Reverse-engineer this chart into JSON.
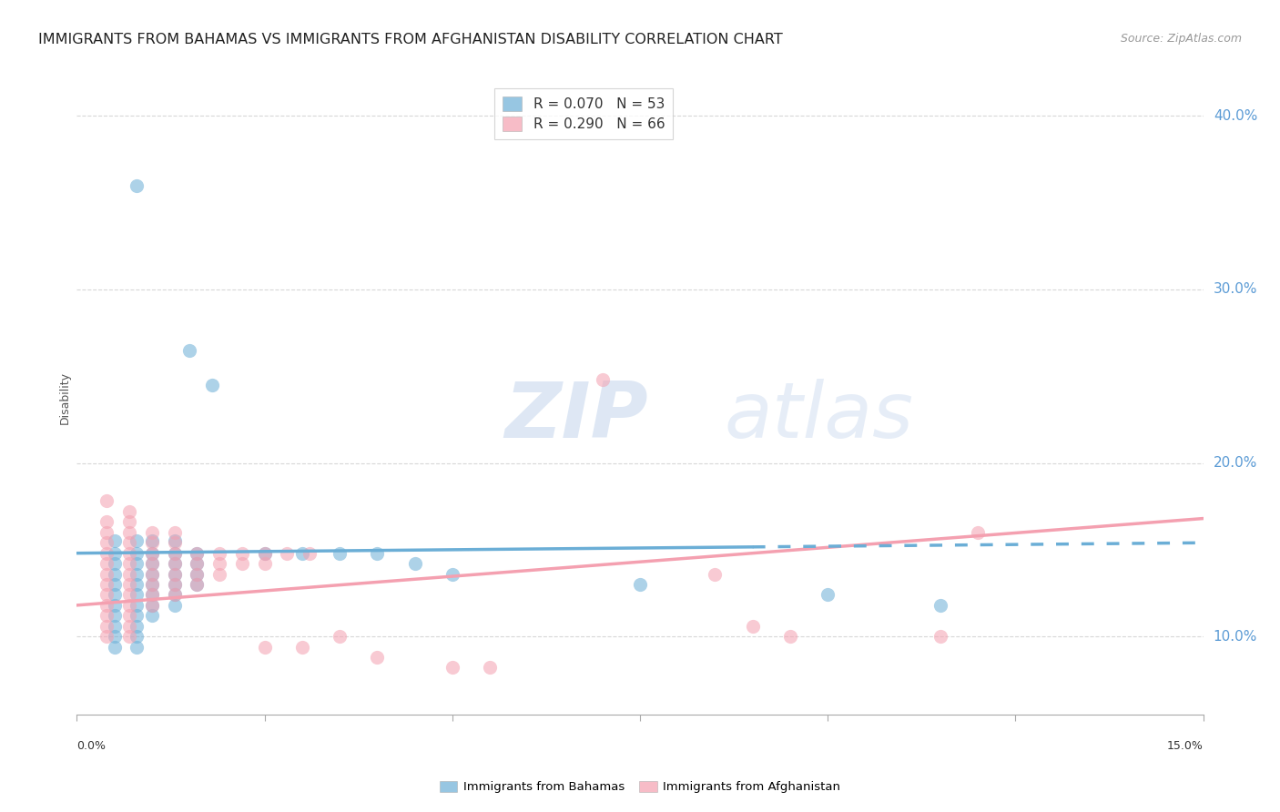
{
  "title": "IMMIGRANTS FROM BAHAMAS VS IMMIGRANTS FROM AFGHANISTAN DISABILITY CORRELATION CHART",
  "source": "Source: ZipAtlas.com",
  "ylabel": "Disability",
  "right_yticks": [
    10.0,
    20.0,
    30.0,
    40.0
  ],
  "xlim": [
    0.0,
    0.15
  ],
  "ylim": [
    0.055,
    0.42
  ],
  "legend_entry_bahamas": "R = 0.070   N = 53",
  "legend_entry_afghanistan": "R = 0.290   N = 66",
  "bahamas_color": "#6baed6",
  "afghanistan_color": "#f4a0b0",
  "bahamas_scatter": [
    [
      0.008,
      0.36
    ],
    [
      0.015,
      0.265
    ],
    [
      0.018,
      0.245
    ],
    [
      0.005,
      0.155
    ],
    [
      0.008,
      0.155
    ],
    [
      0.01,
      0.155
    ],
    [
      0.013,
      0.155
    ],
    [
      0.005,
      0.148
    ],
    [
      0.008,
      0.148
    ],
    [
      0.01,
      0.148
    ],
    [
      0.013,
      0.148
    ],
    [
      0.016,
      0.148
    ],
    [
      0.005,
      0.142
    ],
    [
      0.008,
      0.142
    ],
    [
      0.01,
      0.142
    ],
    [
      0.013,
      0.142
    ],
    [
      0.016,
      0.142
    ],
    [
      0.005,
      0.136
    ],
    [
      0.008,
      0.136
    ],
    [
      0.01,
      0.136
    ],
    [
      0.013,
      0.136
    ],
    [
      0.016,
      0.136
    ],
    [
      0.005,
      0.13
    ],
    [
      0.008,
      0.13
    ],
    [
      0.01,
      0.13
    ],
    [
      0.013,
      0.13
    ],
    [
      0.016,
      0.13
    ],
    [
      0.005,
      0.124
    ],
    [
      0.008,
      0.124
    ],
    [
      0.01,
      0.124
    ],
    [
      0.013,
      0.124
    ],
    [
      0.005,
      0.118
    ],
    [
      0.008,
      0.118
    ],
    [
      0.01,
      0.118
    ],
    [
      0.013,
      0.118
    ],
    [
      0.005,
      0.112
    ],
    [
      0.008,
      0.112
    ],
    [
      0.01,
      0.112
    ],
    [
      0.005,
      0.106
    ],
    [
      0.008,
      0.106
    ],
    [
      0.005,
      0.1
    ],
    [
      0.008,
      0.1
    ],
    [
      0.005,
      0.094
    ],
    [
      0.008,
      0.094
    ],
    [
      0.025,
      0.148
    ],
    [
      0.03,
      0.148
    ],
    [
      0.035,
      0.148
    ],
    [
      0.04,
      0.148
    ],
    [
      0.045,
      0.142
    ],
    [
      0.05,
      0.136
    ],
    [
      0.075,
      0.13
    ],
    [
      0.1,
      0.124
    ],
    [
      0.115,
      0.118
    ]
  ],
  "afghanistan_scatter": [
    [
      0.004,
      0.178
    ],
    [
      0.007,
      0.172
    ],
    [
      0.004,
      0.166
    ],
    [
      0.007,
      0.166
    ],
    [
      0.004,
      0.16
    ],
    [
      0.007,
      0.16
    ],
    [
      0.01,
      0.16
    ],
    [
      0.013,
      0.16
    ],
    [
      0.004,
      0.154
    ],
    [
      0.007,
      0.154
    ],
    [
      0.01,
      0.154
    ],
    [
      0.013,
      0.154
    ],
    [
      0.004,
      0.148
    ],
    [
      0.007,
      0.148
    ],
    [
      0.01,
      0.148
    ],
    [
      0.013,
      0.148
    ],
    [
      0.016,
      0.148
    ],
    [
      0.019,
      0.148
    ],
    [
      0.022,
      0.148
    ],
    [
      0.025,
      0.148
    ],
    [
      0.028,
      0.148
    ],
    [
      0.031,
      0.148
    ],
    [
      0.004,
      0.142
    ],
    [
      0.007,
      0.142
    ],
    [
      0.01,
      0.142
    ],
    [
      0.013,
      0.142
    ],
    [
      0.016,
      0.142
    ],
    [
      0.019,
      0.142
    ],
    [
      0.022,
      0.142
    ],
    [
      0.025,
      0.142
    ],
    [
      0.004,
      0.136
    ],
    [
      0.007,
      0.136
    ],
    [
      0.01,
      0.136
    ],
    [
      0.013,
      0.136
    ],
    [
      0.016,
      0.136
    ],
    [
      0.019,
      0.136
    ],
    [
      0.004,
      0.13
    ],
    [
      0.007,
      0.13
    ],
    [
      0.01,
      0.13
    ],
    [
      0.013,
      0.13
    ],
    [
      0.016,
      0.13
    ],
    [
      0.004,
      0.124
    ],
    [
      0.007,
      0.124
    ],
    [
      0.01,
      0.124
    ],
    [
      0.013,
      0.124
    ],
    [
      0.004,
      0.118
    ],
    [
      0.007,
      0.118
    ],
    [
      0.01,
      0.118
    ],
    [
      0.004,
      0.112
    ],
    [
      0.007,
      0.112
    ],
    [
      0.004,
      0.106
    ],
    [
      0.007,
      0.106
    ],
    [
      0.004,
      0.1
    ],
    [
      0.007,
      0.1
    ],
    [
      0.025,
      0.094
    ],
    [
      0.03,
      0.094
    ],
    [
      0.035,
      0.1
    ],
    [
      0.04,
      0.088
    ],
    [
      0.05,
      0.082
    ],
    [
      0.055,
      0.082
    ],
    [
      0.07,
      0.248
    ],
    [
      0.085,
      0.136
    ],
    [
      0.09,
      0.106
    ],
    [
      0.095,
      0.1
    ],
    [
      0.115,
      0.1
    ],
    [
      0.12,
      0.16
    ]
  ],
  "bahamas_line_x": [
    0.0,
    0.15
  ],
  "bahamas_line_y": [
    0.148,
    0.154
  ],
  "bahamas_line_dash_start": 0.09,
  "afghanistan_line_x": [
    0.0,
    0.15
  ],
  "afghanistan_line_y": [
    0.118,
    0.168
  ],
  "watermark_zip": "ZIP",
  "watermark_atlas": "atlas",
  "background_color": "#ffffff",
  "grid_color": "#d8d8d8",
  "right_tick_color": "#5b9bd5",
  "title_fontsize": 11.5,
  "ylabel_fontsize": 9,
  "legend_fontsize": 11,
  "source_fontsize": 9
}
